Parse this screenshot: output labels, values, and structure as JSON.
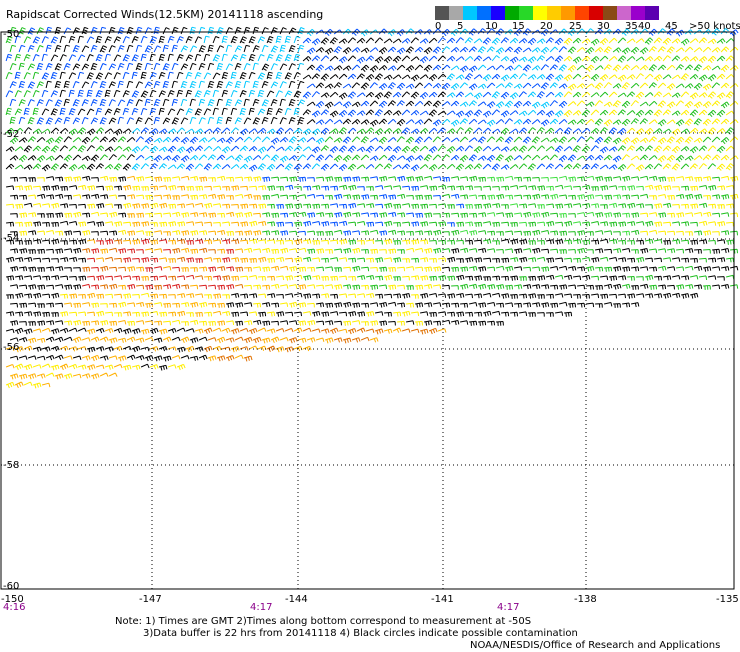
{
  "title": "Rapidscat Corrected Winds(12.5KM) 20141118 ascending",
  "legend": {
    "colors": [
      "#545454",
      "#a8a8a8",
      "#00c8ff",
      "#0070ff",
      "#1a00ff",
      "#00aa00",
      "#28d828",
      "#ffff00",
      "#ffcc00",
      "#ff9900",
      "#ff4400",
      "#d80000",
      "#8a4a16",
      "#cc66cc",
      "#9a00cc",
      "#5b00b0"
    ],
    "ticks": [
      "0",
      "5",
      "10",
      "15",
      "20",
      "25",
      "30",
      "35",
      "40",
      "45",
      ">50 knots"
    ]
  },
  "lat_labels": [
    "-50",
    "-52",
    "-54",
    "-56",
    "-58",
    "-60"
  ],
  "lon_labels": [
    "-150",
    "-147",
    "-144",
    "-141",
    "-138",
    "-135"
  ],
  "time_labels": [
    "4:16",
    "4:17",
    "4:17"
  ],
  "notes": [
    "Note: 1) Times are GMT 2)Times along bottom correspond to measurement at -50S",
    "3)Data buffer is 22 hrs from 20141118 4) Black circles indicate possible contamination",
    "NOAA/NESDIS/Office of Research and Applications"
  ],
  "chart_data": {
    "type": "wind-barb-map",
    "title": "Rapidscat Corrected Winds(12.5KM) 20141118 ascending",
    "lat_range": [
      -60,
      -50
    ],
    "lon_range": [
      -150,
      -135
    ],
    "grid": true,
    "legend_placement": "top-right",
    "speed_units": "knots",
    "speed_bins": [
      "0",
      "5",
      "10",
      "15",
      "20",
      "25",
      "30",
      "35",
      "40",
      "45",
      ">50"
    ]
  }
}
